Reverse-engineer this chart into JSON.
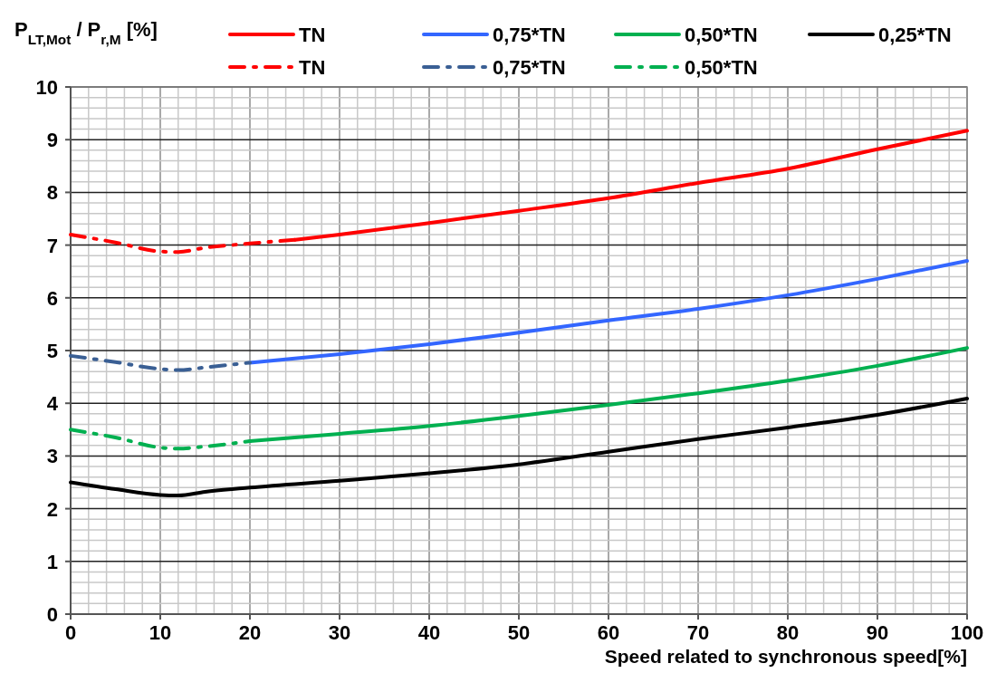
{
  "chart_data": {
    "type": "line",
    "ylabel": "P$_{LT,Mot}$ / P$_{r,M}$ [%]",
    "xlabel": "Speed related to synchronous speed[%]",
    "xlim": [
      0,
      100
    ],
    "ylim": [
      0,
      10
    ],
    "xticks": [
      0,
      {
        "value": 2,
        "label": null
      },
      {
        "value": 4,
        "label": null
      },
      {
        "value": 6,
        "label": null
      },
      {
        "value": 8,
        "label": null
      },
      10,
      {
        "value": 12,
        "label": null
      },
      {
        "value": 14,
        "label": null
      },
      {
        "value": 16,
        "label": null
      },
      {
        "value": 18,
        "label": null
      },
      20,
      {
        "value": 22,
        "label": null
      },
      {
        "value": 24,
        "label": null
      },
      {
        "value": 26,
        "label": null
      },
      {
        "value": 28,
        "label": null
      },
      30,
      {
        "value": 32,
        "label": null
      },
      {
        "value": 34,
        "label": null
      },
      {
        "value": 36,
        "label": null
      },
      {
        "value": 38,
        "label": null
      },
      40,
      {
        "value": 42,
        "label": null
      },
      {
        "value": 44,
        "label": null
      },
      {
        "value": 46,
        "label": null
      },
      {
        "value": 48,
        "label": null
      },
      50,
      {
        "value": 52,
        "label": null
      },
      {
        "value": 54,
        "label": null
      },
      {
        "value": 56,
        "label": null
      },
      {
        "value": 58,
        "label": null
      },
      60,
      {
        "value": 62,
        "label": null
      },
      {
        "value": 64,
        "label": null
      },
      {
        "value": 66,
        "label": null
      },
      {
        "value": 68,
        "label": null
      },
      70,
      {
        "value": 72,
        "label": null
      },
      {
        "value": 74,
        "label": null
      },
      {
        "value": 76,
        "label": null
      },
      {
        "value": 78,
        "label": null
      },
      80,
      {
        "value": 82,
        "label": null
      },
      {
        "value": 84,
        "label": null
      },
      {
        "value": 86,
        "label": null
      },
      {
        "value": 88,
        "label": null
      },
      90,
      {
        "value": 92,
        "label": null
      },
      {
        "value": 94,
        "label": null
      },
      {
        "value": 96,
        "label": null
      },
      {
        "value": 98,
        "label": null
      },
      100
    ],
    "yticks": [
      0,
      {
        "value": 0.2,
        "label": null
      },
      {
        "value": 0.4,
        "label": null
      },
      {
        "value": 0.6,
        "label": null
      },
      {
        "value": 0.8,
        "label": null
      },
      1,
      {
        "value": 1.2,
        "label": null
      },
      {
        "value": 1.4,
        "label": null
      },
      {
        "value": 1.6,
        "label": null
      },
      {
        "value": 1.8,
        "label": null
      },
      2,
      {
        "value": 2.2,
        "label": null
      },
      {
        "value": 2.4,
        "label": null
      },
      {
        "value": 2.6,
        "label": null
      },
      {
        "value": 2.8,
        "label": null
      },
      3,
      {
        "value": 3.2,
        "label": null
      },
      {
        "value": 3.4,
        "label": null
      },
      {
        "value": 3.6,
        "label": null
      },
      {
        "value": 3.8,
        "label": null
      },
      4,
      {
        "value": 4.2,
        "label": null
      },
      {
        "value": 4.4,
        "label": null
      },
      {
        "value": 4.6,
        "label": null
      },
      {
        "value": 4.8,
        "label": null
      },
      5,
      {
        "value": 5.2,
        "label": null
      },
      {
        "value": 5.4,
        "label": null
      },
      {
        "value": 5.6,
        "label": null
      },
      {
        "value": 5.8,
        "label": null
      },
      6,
      {
        "value": 6.2,
        "label": null
      },
      {
        "value": 6.4,
        "label": null
      },
      {
        "value": 6.6,
        "label": null
      },
      {
        "value": 6.8,
        "label": null
      },
      7,
      {
        "value": 7.2,
        "label": null
      },
      {
        "value": 7.4,
        "label": null
      },
      {
        "value": 7.6,
        "label": null
      },
      {
        "value": 7.8,
        "label": null
      },
      8,
      {
        "value": 8.2,
        "label": null
      },
      {
        "value": 8.4,
        "label": null
      },
      {
        "value": 8.6,
        "label": null
      },
      {
        "value": 8.8,
        "label": null
      },
      9,
      {
        "value": 9.2,
        "label": null
      },
      {
        "value": 9.4,
        "label": null
      },
      {
        "value": 9.6,
        "label": null
      },
      {
        "value": 9.8,
        "label": null
      },
      10
    ],
    "grid": true,
    "legend": "top",
    "series": [
      {
        "name": "TN",
        "color": "#ff0000",
        "line_style": "solid",
        "x": [
          25,
          30,
          40,
          50,
          60,
          70,
          80,
          90,
          100
        ],
        "values": [
          7.1,
          7.2,
          7.42,
          7.65,
          7.89,
          8.18,
          8.45,
          8.82,
          9.17
        ]
      },
      {
        "name": "0,75*TN",
        "color": "#3366ff",
        "line_style": "solid",
        "x": [
          20,
          30,
          40,
          50,
          60,
          70,
          80,
          90,
          100
        ],
        "values": [
          4.77,
          4.93,
          5.12,
          5.34,
          5.57,
          5.79,
          6.05,
          6.36,
          6.7
        ]
      },
      {
        "name": "0,50*TN",
        "color": "#00b050",
        "line_style": "solid",
        "x": [
          20,
          30,
          40,
          50,
          60,
          70,
          80,
          90,
          100
        ],
        "values": [
          3.28,
          3.42,
          3.57,
          3.76,
          3.97,
          4.19,
          4.43,
          4.71,
          5.05
        ]
      },
      {
        "name": "0,25*TN",
        "color": "#000000",
        "line_style": "solid",
        "x": [
          0,
          5,
          10,
          12,
          15,
          20,
          30,
          40,
          50,
          60,
          70,
          80,
          90,
          100
        ],
        "values": [
          2.5,
          2.37,
          2.26,
          2.25,
          2.32,
          2.4,
          2.53,
          2.67,
          2.84,
          3.08,
          3.32,
          3.54,
          3.78,
          4.09
        ]
      },
      {
        "name": "TN",
        "color": "#ff0000",
        "line_style": "dashed",
        "x": [
          0,
          5,
          10,
          12,
          15,
          20,
          25
        ],
        "values": [
          7.2,
          7.05,
          6.88,
          6.87,
          6.95,
          7.03,
          7.1
        ]
      },
      {
        "name": "0,75*TN",
        "color": "#3a5f94",
        "line_style": "dashed",
        "x": [
          0,
          5,
          10,
          12,
          15,
          20
        ],
        "values": [
          4.9,
          4.78,
          4.65,
          4.63,
          4.68,
          4.77
        ]
      },
      {
        "name": "0,50*TN",
        "color": "#00b050",
        "line_style": "dashed",
        "x": [
          0,
          5,
          10,
          12,
          15,
          20
        ],
        "values": [
          3.5,
          3.35,
          3.16,
          3.14,
          3.18,
          3.28
        ]
      }
    ]
  }
}
